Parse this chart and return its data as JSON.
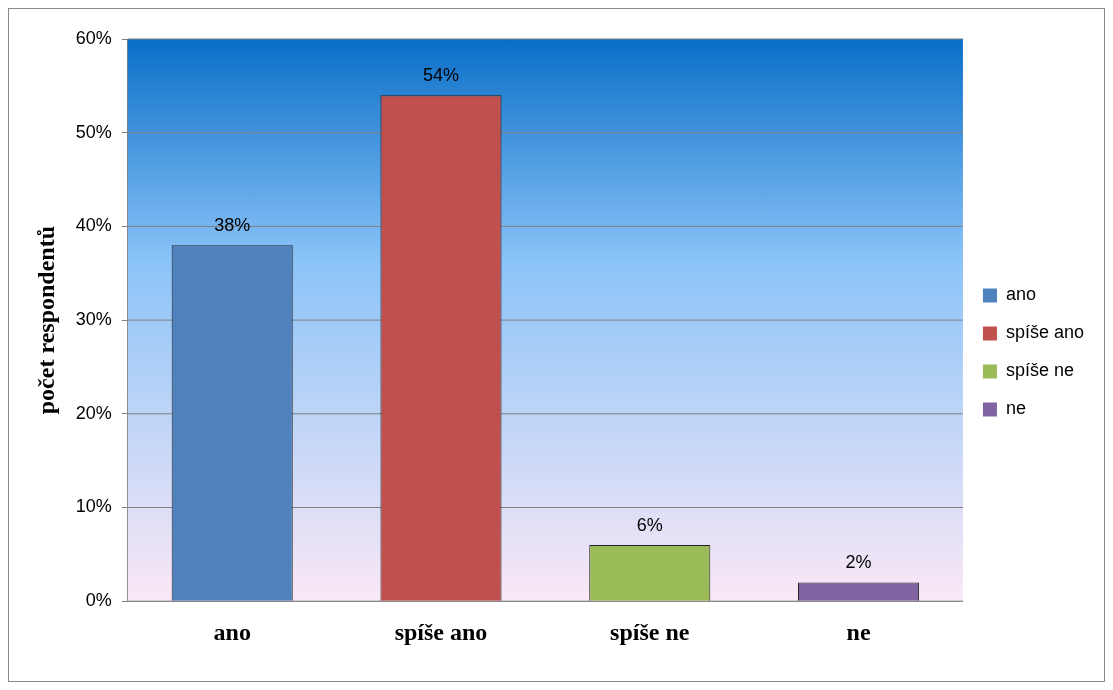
{
  "chart_data": {
    "type": "bar",
    "ylabel": "počet respondentů",
    "categories": [
      "ano",
      "spíše ano",
      "spíše ne",
      "ne"
    ],
    "series": [
      {
        "name": "ano",
        "color": "#4f81bd",
        "values": [
          38,
          null,
          null,
          null
        ],
        "value_labels": [
          "38%",
          null,
          null,
          null
        ]
      },
      {
        "name": "spíše ano",
        "color": "#c0504d",
        "values": [
          null,
          54,
          null,
          null
        ],
        "value_labels": [
          null,
          "54%",
          null,
          null
        ]
      },
      {
        "name": "spíše ne",
        "color": "#9bbb59",
        "values": [
          null,
          null,
          6,
          null
        ],
        "value_labels": [
          null,
          null,
          "6%",
          null
        ]
      },
      {
        "name": "ne",
        "color": "#8064a2",
        "values": [
          null,
          null,
          null,
          2
        ],
        "value_labels": [
          null,
          null,
          null,
          "2%"
        ]
      }
    ],
    "ylim": [
      0,
      60
    ],
    "yticks": [
      {
        "value": 0,
        "label": "0%"
      },
      {
        "value": 10,
        "label": "10%"
      },
      {
        "value": 20,
        "label": "20%"
      },
      {
        "value": 30,
        "label": "30%"
      },
      {
        "value": 40,
        "label": "40%"
      },
      {
        "value": 50,
        "label": "50%"
      },
      {
        "value": 60,
        "label": "60%"
      }
    ],
    "grid": "y",
    "legend": "right"
  }
}
